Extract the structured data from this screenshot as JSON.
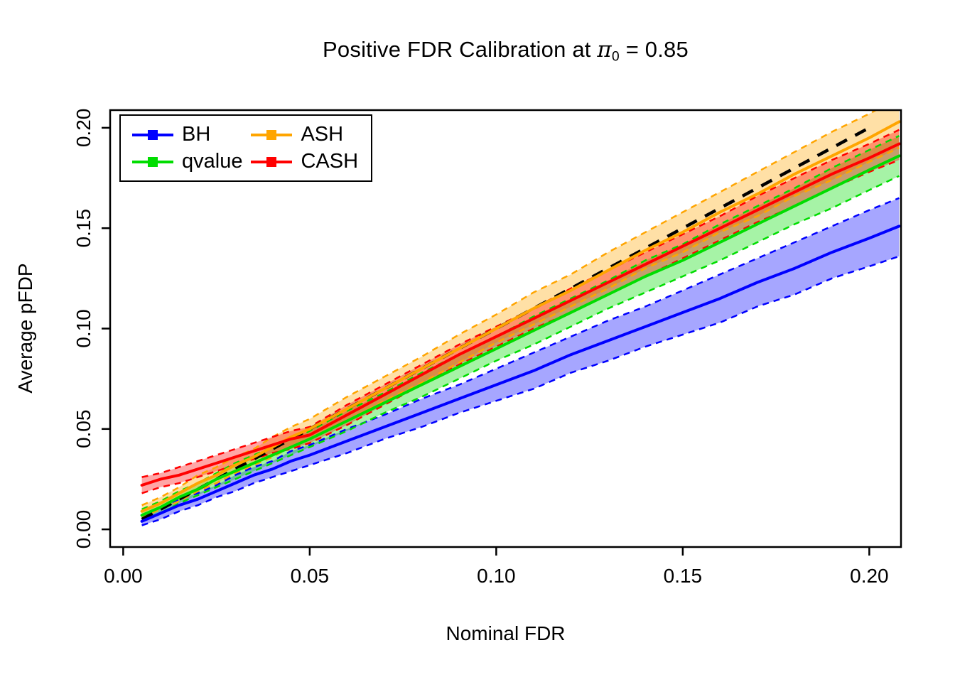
{
  "title": {
    "prefix": "Positive FDR Calibration at ",
    "pi": "π",
    "pi_subscript": "0",
    "suffix": " = 0.85",
    "full": "Positive FDR Calibration at π0 = 0.85"
  },
  "chart_data": {
    "type": "line",
    "title": "Positive FDR Calibration at π0 = 0.85",
    "xlabel": "Nominal FDR",
    "ylabel": "Average pFDP",
    "xlim": [
      -0.0035,
      0.2085
    ],
    "ylim": [
      -0.0088,
      0.2088
    ],
    "grid": false,
    "legend_position": "top-left",
    "band_opacity": 0.35,
    "x_ticks": [
      {
        "value": 0.0,
        "label": "0.00"
      },
      {
        "value": 0.05,
        "label": "0.05"
      },
      {
        "value": 0.1,
        "label": "0.10"
      },
      {
        "value": 0.15,
        "label": "0.15"
      },
      {
        "value": 0.2,
        "label": "0.20"
      }
    ],
    "y_ticks": [
      {
        "value": 0.0,
        "label": "0.00"
      },
      {
        "value": 0.05,
        "label": "0.05"
      },
      {
        "value": 0.1,
        "label": "0.10"
      },
      {
        "value": 0.15,
        "label": "0.15"
      },
      {
        "value": 0.2,
        "label": "0.20"
      }
    ],
    "reference_line": {
      "description": "identity line y = x",
      "style": "dashed",
      "color": "#000000",
      "x": [
        0.005,
        0.2
      ],
      "y": [
        0.005,
        0.2
      ]
    },
    "series": [
      {
        "id": "bh",
        "name": "BH",
        "color": "#0000FF",
        "x": [
          0.005,
          0.01,
          0.015,
          0.02,
          0.025,
          0.03,
          0.035,
          0.04,
          0.045,
          0.05,
          0.06,
          0.07,
          0.08,
          0.09,
          0.1,
          0.11,
          0.12,
          0.13,
          0.14,
          0.15,
          0.16,
          0.17,
          0.18,
          0.19,
          0.2,
          0.208
        ],
        "mean": [
          0.004,
          0.008,
          0.012,
          0.015,
          0.019,
          0.023,
          0.027,
          0.03,
          0.034,
          0.037,
          0.044,
          0.051,
          0.058,
          0.065,
          0.072,
          0.079,
          0.087,
          0.094,
          0.101,
          0.108,
          0.115,
          0.123,
          0.13,
          0.138,
          0.145,
          0.151
        ],
        "lower": [
          0.002,
          0.005,
          0.009,
          0.012,
          0.016,
          0.019,
          0.023,
          0.026,
          0.029,
          0.032,
          0.038,
          0.045,
          0.051,
          0.058,
          0.064,
          0.07,
          0.078,
          0.084,
          0.091,
          0.097,
          0.103,
          0.111,
          0.117,
          0.125,
          0.131,
          0.136
        ],
        "upper": [
          0.006,
          0.011,
          0.015,
          0.018,
          0.022,
          0.027,
          0.031,
          0.034,
          0.039,
          0.042,
          0.05,
          0.057,
          0.065,
          0.072,
          0.08,
          0.088,
          0.096,
          0.104,
          0.111,
          0.119,
          0.127,
          0.135,
          0.143,
          0.151,
          0.159,
          0.165
        ]
      },
      {
        "id": "qvalue",
        "name": "qvalue",
        "color": "#00DD00",
        "x": [
          0.005,
          0.01,
          0.015,
          0.02,
          0.025,
          0.03,
          0.035,
          0.04,
          0.045,
          0.05,
          0.06,
          0.07,
          0.08,
          0.09,
          0.1,
          0.11,
          0.12,
          0.13,
          0.14,
          0.15,
          0.16,
          0.17,
          0.18,
          0.19,
          0.2,
          0.208
        ],
        "mean": [
          0.007,
          0.011,
          0.016,
          0.02,
          0.025,
          0.029,
          0.033,
          0.037,
          0.041,
          0.045,
          0.054,
          0.063,
          0.072,
          0.081,
          0.09,
          0.099,
          0.108,
          0.117,
          0.126,
          0.134,
          0.143,
          0.152,
          0.161,
          0.17,
          0.179,
          0.186
        ],
        "lower": [
          0.004,
          0.008,
          0.013,
          0.017,
          0.021,
          0.025,
          0.029,
          0.033,
          0.037,
          0.041,
          0.049,
          0.058,
          0.066,
          0.075,
          0.084,
          0.092,
          0.101,
          0.11,
          0.118,
          0.126,
          0.134,
          0.143,
          0.152,
          0.16,
          0.169,
          0.176
        ],
        "upper": [
          0.01,
          0.014,
          0.019,
          0.023,
          0.028,
          0.033,
          0.037,
          0.041,
          0.045,
          0.049,
          0.059,
          0.068,
          0.078,
          0.087,
          0.096,
          0.106,
          0.115,
          0.124,
          0.134,
          0.142,
          0.152,
          0.161,
          0.17,
          0.18,
          0.189,
          0.196
        ]
      },
      {
        "id": "ash",
        "name": "ASH",
        "color": "#FFA500",
        "x": [
          0.005,
          0.01,
          0.015,
          0.02,
          0.025,
          0.03,
          0.035,
          0.04,
          0.045,
          0.05,
          0.06,
          0.07,
          0.08,
          0.09,
          0.1,
          0.11,
          0.12,
          0.13,
          0.14,
          0.15,
          0.16,
          0.17,
          0.18,
          0.19,
          0.2,
          0.208
        ],
        "mean": [
          0.009,
          0.013,
          0.018,
          0.023,
          0.027,
          0.032,
          0.036,
          0.041,
          0.046,
          0.05,
          0.06,
          0.07,
          0.08,
          0.09,
          0.1,
          0.11,
          0.119,
          0.129,
          0.139,
          0.148,
          0.158,
          0.167,
          0.177,
          0.186,
          0.195,
          0.203
        ],
        "lower": [
          0.006,
          0.01,
          0.014,
          0.019,
          0.023,
          0.028,
          0.032,
          0.036,
          0.041,
          0.045,
          0.054,
          0.064,
          0.073,
          0.083,
          0.093,
          0.102,
          0.111,
          0.12,
          0.13,
          0.138,
          0.148,
          0.156,
          0.166,
          0.174,
          0.183,
          0.19
        ],
        "upper": [
          0.012,
          0.016,
          0.021,
          0.027,
          0.031,
          0.036,
          0.04,
          0.046,
          0.051,
          0.055,
          0.066,
          0.076,
          0.086,
          0.097,
          0.107,
          0.118,
          0.127,
          0.138,
          0.148,
          0.158,
          0.168,
          0.178,
          0.188,
          0.198,
          0.207,
          0.215
        ]
      },
      {
        "id": "cash",
        "name": "CASH",
        "color": "#FF0000",
        "x": [
          0.005,
          0.01,
          0.015,
          0.02,
          0.025,
          0.03,
          0.035,
          0.04,
          0.045,
          0.05,
          0.06,
          0.07,
          0.08,
          0.09,
          0.1,
          0.11,
          0.12,
          0.13,
          0.14,
          0.15,
          0.16,
          0.17,
          0.18,
          0.19,
          0.2,
          0.208
        ],
        "mean": [
          0.022,
          0.025,
          0.027,
          0.03,
          0.033,
          0.036,
          0.039,
          0.042,
          0.045,
          0.047,
          0.057,
          0.067,
          0.077,
          0.087,
          0.096,
          0.105,
          0.114,
          0.123,
          0.132,
          0.141,
          0.15,
          0.159,
          0.168,
          0.177,
          0.185,
          0.192
        ],
        "lower": [
          0.018,
          0.021,
          0.023,
          0.026,
          0.029,
          0.032,
          0.035,
          0.038,
          0.04,
          0.043,
          0.052,
          0.062,
          0.072,
          0.082,
          0.091,
          0.1,
          0.108,
          0.117,
          0.126,
          0.135,
          0.144,
          0.153,
          0.161,
          0.17,
          0.178,
          0.184
        ],
        "upper": [
          0.026,
          0.028,
          0.031,
          0.034,
          0.037,
          0.04,
          0.043,
          0.046,
          0.049,
          0.051,
          0.062,
          0.072,
          0.082,
          0.092,
          0.101,
          0.11,
          0.12,
          0.129,
          0.138,
          0.147,
          0.156,
          0.166,
          0.175,
          0.184,
          0.192,
          0.199
        ]
      }
    ]
  },
  "legend": {
    "items": [
      {
        "label": "BH",
        "color": "#0000FF"
      },
      {
        "label": "qvalue",
        "color": "#00DD00"
      },
      {
        "label": "ASH",
        "color": "#FFA500"
      },
      {
        "label": "CASH",
        "color": "#FF0000"
      }
    ]
  }
}
